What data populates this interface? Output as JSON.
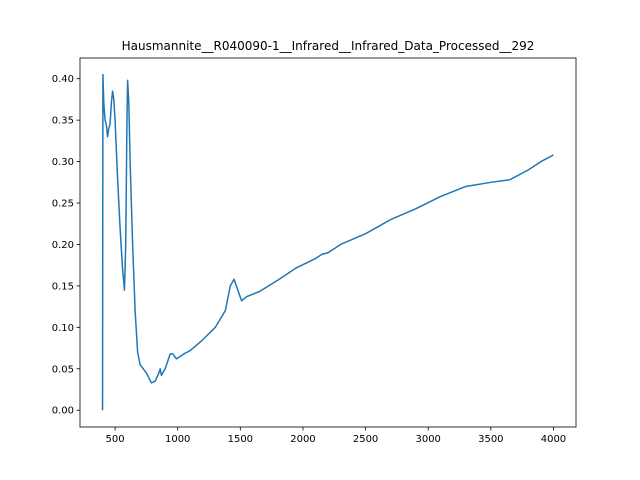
{
  "chart_data": {
    "type": "line",
    "title": "Hausmannite__R040090-1__Infrared__Infrared_Data_Processed__292",
    "x": [
      400,
      403,
      410,
      420,
      430,
      440,
      450,
      460,
      470,
      480,
      490,
      500,
      520,
      540,
      560,
      575,
      585,
      595,
      600,
      610,
      620,
      640,
      660,
      680,
      700,
      750,
      790,
      820,
      850,
      860,
      870,
      900,
      940,
      960,
      990,
      1050,
      1100,
      1200,
      1300,
      1380,
      1420,
      1450,
      1480,
      1510,
      1550,
      1650,
      1800,
      1950,
      2100,
      2150,
      2200,
      2300,
      2500,
      2700,
      2900,
      3100,
      3300,
      3500,
      3650,
      3800,
      3900,
      4000
    ],
    "series": [
      {
        "color": "#1f77b4",
        "values": [
          0.0,
          0.405,
          0.37,
          0.35,
          0.345,
          0.33,
          0.34,
          0.345,
          0.37,
          0.385,
          0.375,
          0.35,
          0.28,
          0.22,
          0.17,
          0.145,
          0.2,
          0.35,
          0.398,
          0.37,
          0.3,
          0.2,
          0.12,
          0.07,
          0.055,
          0.045,
          0.033,
          0.035,
          0.045,
          0.05,
          0.042,
          0.05,
          0.068,
          0.068,
          0.062,
          0.068,
          0.072,
          0.085,
          0.1,
          0.12,
          0.15,
          0.158,
          0.145,
          0.132,
          0.137,
          0.143,
          0.157,
          0.172,
          0.183,
          0.188,
          0.19,
          0.2,
          0.213,
          0.23,
          0.243,
          0.258,
          0.27,
          0.275,
          0.278,
          0.29,
          0.3,
          0.308
        ]
      }
    ],
    "xlim": [
      220,
      4180
    ],
    "ylim": [
      -0.02025,
      0.425
    ],
    "xticks": [
      500,
      1000,
      1500,
      2000,
      2500,
      3000,
      3500,
      4000
    ],
    "yticks": [
      {
        "value": 0,
        "label": "0.00"
      },
      {
        "value": 0.05,
        "label": "0.05"
      },
      {
        "value": 0.1,
        "label": "0.10"
      },
      {
        "value": 0.15,
        "label": "0.15"
      },
      {
        "value": 0.2,
        "label": "0.20"
      },
      {
        "value": 0.25,
        "label": "0.25"
      },
      {
        "value": 0.3,
        "label": "0.30"
      },
      {
        "value": 0.35,
        "label": "0.35"
      },
      {
        "value": 0.4,
        "label": "0.40"
      }
    ]
  }
}
